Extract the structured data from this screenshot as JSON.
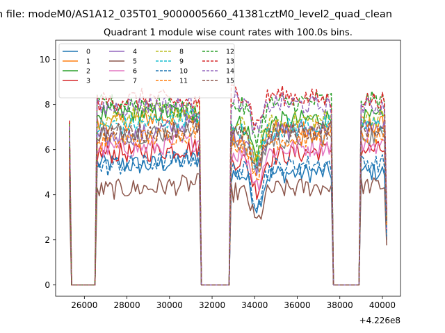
{
  "figure": {
    "suptitle": "n file: modeM0/AS1A12_035T01_9000005660_41381cztM0_level2_quad_clean",
    "title": "Quadrant 1 module wise count rates with 100.0s bins.",
    "offset_label": "+4.226e8"
  },
  "chart_data": {
    "type": "line",
    "title": "Quadrant 1 module wise count rates with 100.0s bins.",
    "xlabel": "",
    "ylabel": "",
    "x_offset": 422600000,
    "xlim": [
      24650,
      40850
    ],
    "ylim": [
      -0.5,
      10.85
    ],
    "xticks": [
      26000,
      28000,
      30000,
      32000,
      34000,
      36000,
      38000,
      40000
    ],
    "xtick_labels": [
      "26000",
      "28000",
      "30000",
      "32000",
      "34000",
      "36000",
      "38000",
      "40000"
    ],
    "yticks": [
      0,
      2,
      4,
      6,
      8,
      10
    ],
    "ytick_labels": [
      "0",
      "2",
      "4",
      "6",
      "8",
      "10"
    ],
    "grid": false,
    "legend": {
      "placement": "upper-left",
      "columns": 4
    },
    "segments": [
      {
        "x_start": 25300,
        "x_end": 26550,
        "kind": "gap_drop"
      },
      {
        "x_start": 26550,
        "x_end": 31500,
        "kind": "data"
      },
      {
        "x_start": 31500,
        "x_end": 32900,
        "kind": "gap"
      },
      {
        "x_start": 32900,
        "x_end": 37700,
        "kind": "data"
      },
      {
        "x_start": 37700,
        "x_end": 39000,
        "kind": "gap"
      },
      {
        "x_start": 39000,
        "x_end": 40200,
        "kind": "data"
      }
    ],
    "series": [
      {
        "name": "0",
        "color": "#1f77b4",
        "dashed": false,
        "base": [
          5.4,
          5.3,
          5.6,
          4.9,
          5.0
        ]
      },
      {
        "name": "1",
        "color": "#ff7f0e",
        "dashed": false,
        "base": [
          7.1,
          7.4,
          7.5,
          6.7,
          7.1
        ]
      },
      {
        "name": "2",
        "color": "#2ca02c",
        "dashed": false,
        "base": [
          7.6,
          7.6,
          7.7,
          7.1,
          7.4
        ]
      },
      {
        "name": "3",
        "color": "#d62728",
        "dashed": false,
        "base": [
          5.8,
          5.9,
          6.1,
          5.5,
          6.0
        ]
      },
      {
        "name": "4",
        "color": "#9467bd",
        "dashed": false,
        "base": [
          6.5,
          6.7,
          7.3,
          6.6,
          7.0
        ]
      },
      {
        "name": "5",
        "color": "#8c564b",
        "dashed": false,
        "base": [
          4.2,
          4.3,
          4.5,
          4.1,
          4.4
        ]
      },
      {
        "name": "6",
        "color": "#e377c2",
        "dashed": false,
        "base": [
          6.0,
          6.1,
          6.4,
          5.8,
          6.2
        ]
      },
      {
        "name": "7",
        "color": "#7f7f7f",
        "dashed": false,
        "base": [
          6.8,
          6.7,
          6.9,
          6.3,
          6.6
        ]
      },
      {
        "name": "8",
        "color": "#bcbd22",
        "dashed": true,
        "base": [
          7.4,
          7.6,
          7.7,
          7.0,
          7.4
        ]
      },
      {
        "name": "9",
        "color": "#17becf",
        "dashed": true,
        "base": [
          7.0,
          7.2,
          7.5,
          6.8,
          7.1
        ]
      },
      {
        "name": "10",
        "color": "#1f77b4",
        "dashed": true,
        "base": [
          5.2,
          5.4,
          5.7,
          5.1,
          5.4
        ]
      },
      {
        "name": "11",
        "color": "#ff7f0e",
        "dashed": true,
        "base": [
          6.3,
          6.5,
          6.8,
          6.3,
          6.6
        ]
      },
      {
        "name": "12",
        "color": "#2ca02c",
        "dashed": true,
        "base": [
          8.0,
          8.1,
          7.6,
          7.9,
          8.2
        ]
      },
      {
        "name": "13",
        "color": "#d62728",
        "dashed": true,
        "base": [
          8.1,
          8.3,
          8.0,
          8.6,
          8.2
        ]
      },
      {
        "name": "14",
        "color": "#9467bd",
        "dashed": true,
        "base": [
          7.8,
          8.0,
          7.9,
          8.2,
          7.9
        ]
      },
      {
        "name": "15",
        "color": "#8c564b",
        "dashed": true,
        "base": [
          6.7,
          6.8,
          7.0,
          6.6,
          6.9
        ]
      }
    ]
  }
}
